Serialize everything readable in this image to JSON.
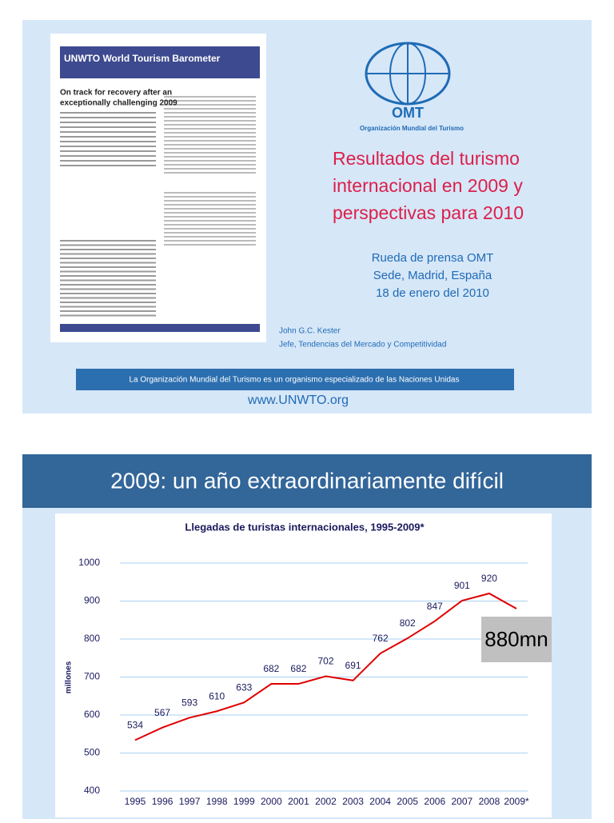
{
  "slide1": {
    "thumbnail": {
      "title": "UNWTO World Tourism Barometer",
      "headline": [
        "On track for recovery after an",
        "exceptionally challenging 2009"
      ]
    },
    "logo": {
      "acronym": "OMT",
      "name": "Organización Mundial del Turismo"
    },
    "title_lines": [
      "Resultados del turismo",
      "internacional en 2009 y",
      "perspectivas para 2010"
    ],
    "subtitle_lines": [
      "Rueda de prensa OMT",
      "Sede, Madrid, España",
      "18 de enero del 2010"
    ],
    "author_lines": [
      "John G.C. Kester",
      "Jefe, Tendencias del Mercado y Competitividad"
    ],
    "banner": "La Organización Mundial del Turismo es un organismo especializado de las Naciones Unidas",
    "url": "www.UNWTO.org"
  },
  "slide2": {
    "heading": "2009: un año extraordinariamente difícil",
    "chart_data": {
      "type": "line",
      "title": "Llegadas de turistas internacionales, 1995-2009*",
      "y_label": "millones",
      "categories": [
        "1995",
        "1996",
        "1997",
        "1998",
        "1999",
        "2000",
        "2001",
        "2002",
        "2003",
        "2004",
        "2005",
        "2006",
        "2007",
        "2008",
        "2009*"
      ],
      "values": [
        534,
        567,
        593,
        610,
        633,
        682,
        682,
        702,
        691,
        762,
        802,
        847,
        901,
        920,
        880
      ],
      "value_labels": [
        "534",
        "567",
        "593",
        "610",
        "633",
        "682",
        "682",
        "702",
        "691",
        "762",
        "802",
        "847",
        "901",
        "920",
        null
      ],
      "color": "#e00000",
      "ylim": [
        400,
        1000
      ],
      "yticks": [
        400,
        500,
        600,
        700,
        800,
        900,
        1000
      ],
      "grid": true,
      "annotation": "880mn"
    }
  }
}
